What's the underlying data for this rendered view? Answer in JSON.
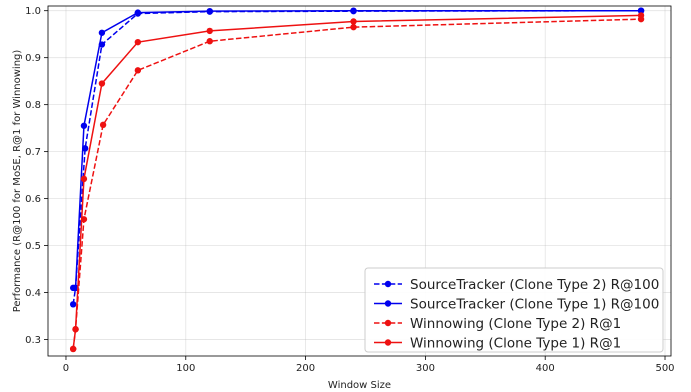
{
  "chart_data": {
    "type": "line",
    "title": "",
    "xlabel": "Window Size",
    "ylabel": "Performance (R@100 for MoSE, R@1 for Winnowing)",
    "xlim": [
      -15,
      505
    ],
    "ylim": [
      0.265,
      1.01
    ],
    "xticks": [
      0,
      100,
      200,
      300,
      400,
      500
    ],
    "yticks": [
      0.3,
      0.4,
      0.5,
      0.6,
      0.7,
      0.8,
      0.9,
      1.0
    ],
    "xtick_labels": [
      "0",
      "100",
      "200",
      "300",
      "400",
      "500"
    ],
    "ytick_labels": [
      "0.3",
      "0.4",
      "0.5",
      "0.6",
      "0.7",
      "0.8",
      "0.9",
      "1.0"
    ],
    "grid": true,
    "legend_position": "lower-right",
    "x": [
      6,
      8,
      15,
      16,
      30,
      31,
      60,
      120,
      240,
      480
    ],
    "series": [
      {
        "name": "SourceTracker (Clone Type 2) R@100",
        "color": "#0000ee",
        "linestyle": "dashed",
        "x": [
          6,
          8,
          16,
          30,
          60,
          120,
          240,
          480
        ],
        "values": [
          0.375,
          0.41,
          0.707,
          0.928,
          0.994,
          0.998,
          0.999,
          1.0
        ]
      },
      {
        "name": "SourceTracker (Clone Type 1) R@100",
        "color": "#0000ee",
        "linestyle": "solid",
        "x": [
          6,
          8,
          15,
          30,
          60,
          120,
          240,
          480
        ],
        "values": [
          0.41,
          0.41,
          0.755,
          0.953,
          0.996,
          0.999,
          1.0,
          1.0
        ]
      },
      {
        "name": "Winnowing (Clone Type 2) R@1",
        "color": "#ee1111",
        "linestyle": "dashed",
        "x": [
          6,
          8,
          15,
          31,
          60,
          120,
          240,
          480
        ],
        "values": [
          0.28,
          0.322,
          0.556,
          0.757,
          0.873,
          0.935,
          0.965,
          0.982
        ]
      },
      {
        "name": "Winnowing (Clone Type 1) R@1",
        "color": "#ee1111",
        "linestyle": "solid",
        "x": [
          6,
          8,
          15,
          30,
          60,
          120,
          240,
          480
        ],
        "values": [
          0.28,
          0.322,
          0.642,
          0.845,
          0.933,
          0.957,
          0.977,
          0.99
        ]
      }
    ]
  }
}
